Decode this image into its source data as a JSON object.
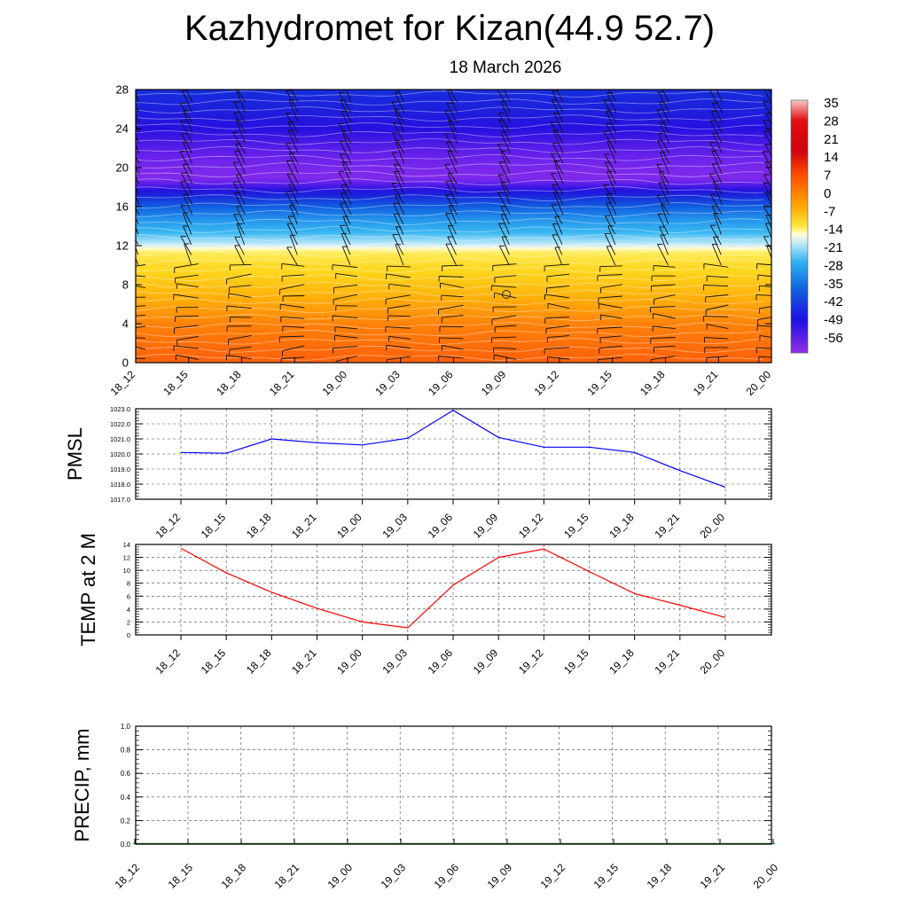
{
  "header": {
    "title": "Kazhydromet for Kizan(44.9 52.7)",
    "subtitle": "18 March 2026"
  },
  "chart_data": [
    {
      "type": "heatmap",
      "title": "Temperature / wind cross-section",
      "ylabel": "",
      "ylim": [
        0,
        28
      ],
      "yticks": [
        0,
        4,
        8,
        12,
        16,
        20,
        24,
        28
      ],
      "categories": [
        "18_12",
        "18_15",
        "18_18",
        "18_21",
        "19_00",
        "19_03",
        "19_06",
        "19_09",
        "19_12",
        "19_15",
        "19_18",
        "19_21",
        "20_00"
      ],
      "colorbar": {
        "labels": [
          "35",
          "28",
          "21",
          "14",
          "7",
          "0",
          "-7",
          "-14",
          "-21",
          "-28",
          "-35",
          "-42",
          "-49",
          "-56"
        ],
        "range": [
          -60,
          38
        ]
      },
      "temperature_profile": {
        "height_km": [
          0,
          2,
          4,
          6,
          8,
          10,
          11.3,
          12.2,
          13,
          14,
          15,
          16,
          17,
          18,
          19,
          20,
          22,
          24,
          26,
          28
        ],
        "temp_c": [
          14,
          12,
          10,
          7,
          4,
          1,
          -3,
          -14,
          -18,
          -24,
          -30,
          -36,
          -43,
          -52,
          -58,
          -57,
          -54,
          -50,
          -46,
          -43
        ]
      },
      "wind_barbs": "staff-and-barb markers at every level and time step"
    },
    {
      "type": "line",
      "ylabel": "PMSL",
      "ylim": [
        1017.0,
        1023.0
      ],
      "yticks": [
        "1017.0",
        "1018.0",
        "1019.0",
        "1020.0",
        "1021.0",
        "1022.0",
        "1023.0"
      ],
      "categories": [
        "18_12",
        "18_15",
        "18_18",
        "18_21",
        "19_00",
        "19_03",
        "19_06",
        "19_09",
        "19_12",
        "19_15",
        "19_18",
        "19_21",
        "20_00"
      ],
      "series": [
        {
          "name": "PMSL",
          "color": "#0000ff",
          "values": [
            1020.1,
            1020.05,
            1021.0,
            1020.75,
            1020.6,
            1021.05,
            1022.9,
            1021.1,
            1020.45,
            1020.45,
            1020.1,
            1018.9,
            1017.8
          ]
        }
      ]
    },
    {
      "type": "line",
      "ylabel": "TEMP at 2 M",
      "ylim": [
        0,
        14
      ],
      "yticks": [
        "0",
        "2",
        "4",
        "6",
        "8",
        "10",
        "12",
        "14"
      ],
      "categories": [
        "18_12",
        "18_15",
        "18_18",
        "18_21",
        "19_00",
        "19_03",
        "19_06",
        "19_09",
        "19_12",
        "19_15",
        "19_18",
        "19_21",
        "20_00"
      ],
      "series": [
        {
          "name": "TEMP at 2 M",
          "color": "#ff0000",
          "values": [
            13.4,
            9.6,
            6.6,
            4.1,
            2.0,
            1.1,
            7.7,
            12.0,
            13.3,
            9.8,
            6.4,
            4.6,
            2.7
          ]
        }
      ]
    },
    {
      "type": "bar",
      "ylabel": "PRECIP, mm",
      "ylim": [
        0,
        1.0
      ],
      "yticks": [
        "0.0",
        "0.2",
        "0.4",
        "0.6",
        "0.8",
        "1.0"
      ],
      "categories": [
        "18_12",
        "18_15",
        "18_18",
        "18_21",
        "19_00",
        "19_03",
        "19_06",
        "19_09",
        "19_12",
        "19_15",
        "19_18",
        "19_21",
        "20_00"
      ],
      "series": [
        {
          "name": "PRECIP, mm",
          "color": "#006400",
          "values": [
            0,
            0,
            0,
            0,
            0,
            0,
            0,
            0,
            0,
            0,
            0,
            0,
            0
          ]
        }
      ]
    }
  ]
}
